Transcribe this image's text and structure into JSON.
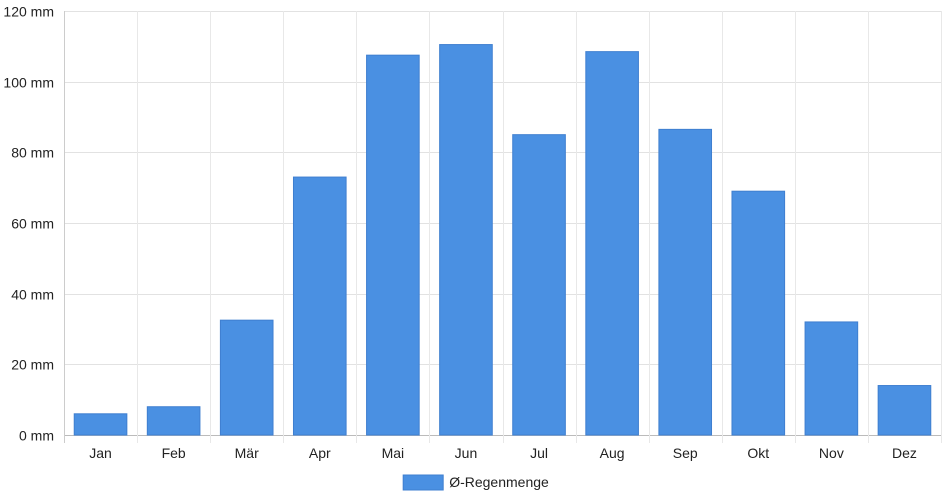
{
  "chart_data": {
    "type": "bar",
    "categories": [
      "Jan",
      "Feb",
      "Mär",
      "Apr",
      "Mai",
      "Jun",
      "Jul",
      "Aug",
      "Sep",
      "Okt",
      "Nov",
      "Dez"
    ],
    "series": [
      {
        "name": "Ø-Regenmenge",
        "color": "#4a90e2",
        "values": [
          6,
          8,
          32.5,
          73,
          107.5,
          110.5,
          85,
          108.5,
          86.5,
          69,
          32,
          14
        ]
      }
    ],
    "y_unit": "mm",
    "ylim": [
      0,
      120
    ],
    "y_ticks": [
      0,
      20,
      40,
      60,
      80,
      100,
      120
    ],
    "y_tick_labels": [
      "0 mm",
      "20 mm",
      "40 mm",
      "60 mm",
      "80 mm",
      "100 mm",
      "120 mm"
    ],
    "grid": true,
    "legend_placement": "bottom-center"
  }
}
